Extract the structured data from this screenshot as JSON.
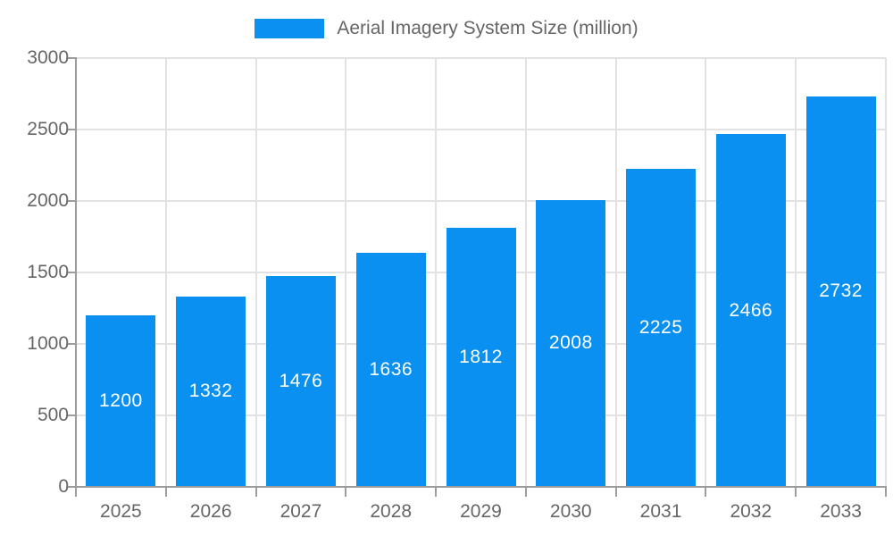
{
  "chart_data": {
    "type": "bar",
    "title": "Aerial Imagery System Size (million)",
    "series_name": "Aerial Imagery System Size (million)",
    "categories": [
      "2025",
      "2026",
      "2027",
      "2028",
      "2029",
      "2030",
      "2031",
      "2032",
      "2033"
    ],
    "values": [
      1200,
      1332,
      1476,
      1636,
      1812,
      2008,
      2225,
      2466,
      2732
    ],
    "xlabel": "",
    "ylabel": "",
    "ylim": [
      0,
      3000
    ],
    "yticks": [
      0,
      500,
      1000,
      1500,
      2000,
      2500,
      3000
    ],
    "grid": true,
    "legend_position": "top-center",
    "value_label_position": "inside-center",
    "colors": {
      "bar": "#0a90f0",
      "bar_value_text": "#ffffff",
      "axis_text": "#666666",
      "grid_line": "#e2e2e2",
      "axis_line": "#9c9c9c",
      "background": "#ffffff"
    }
  }
}
